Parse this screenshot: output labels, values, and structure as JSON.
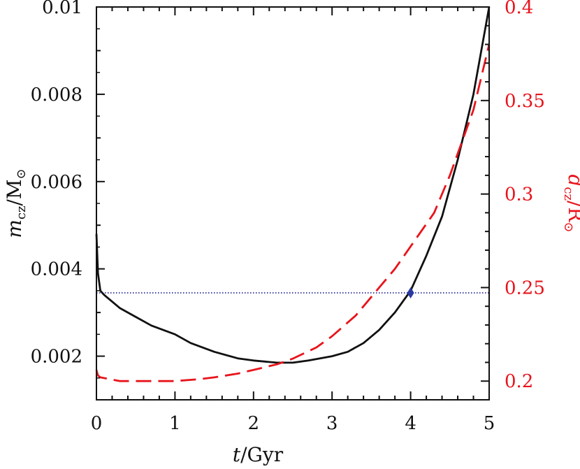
{
  "chart_data": {
    "type": "line",
    "xlabel": "t/Gyr",
    "ylabel_left": "m_cz/M_⊙",
    "ylabel_right": "d_cz/R_⊙",
    "xlim": [
      0,
      5
    ],
    "ylim_left": [
      0.001,
      0.01
    ],
    "ylim_right": [
      0.19,
      0.4
    ],
    "x_ticks": [
      "0",
      "1",
      "2",
      "3",
      "4",
      "5"
    ],
    "y_left_ticks": [
      "0.002",
      "0.004",
      "0.006",
      "0.008",
      "0.01"
    ],
    "y_right_ticks": [
      "0.2",
      "0.25",
      "0.3",
      "0.35",
      "0.4"
    ],
    "grid": false,
    "series": [
      {
        "axis": "left",
        "style": "solid",
        "color": "#111111",
        "x": [
          0,
          0.02,
          0.05,
          0.1,
          0.3,
          0.5,
          0.7,
          1.0,
          1.2,
          1.5,
          1.8,
          2.0,
          2.3,
          2.5,
          2.7,
          3.0,
          3.2,
          3.4,
          3.6,
          3.8,
          4.0,
          4.2,
          4.4,
          4.6,
          4.8,
          5.0
        ],
        "y": [
          0.0048,
          0.0039,
          0.0035,
          0.0034,
          0.0031,
          0.0029,
          0.0027,
          0.0025,
          0.0023,
          0.0021,
          0.00195,
          0.0019,
          0.00185,
          0.00185,
          0.0019,
          0.002,
          0.0021,
          0.0023,
          0.0026,
          0.003,
          0.0035,
          0.0043,
          0.0052,
          0.0065,
          0.008,
          0.01
        ]
      },
      {
        "axis": "right",
        "style": "dashed",
        "color": "#e8141c",
        "x": [
          0,
          0.02,
          0.05,
          0.3,
          0.5,
          0.7,
          1.0,
          1.3,
          1.5,
          1.8,
          2.0,
          2.3,
          2.5,
          2.8,
          3.0,
          3.3,
          3.5,
          3.8,
          4.0,
          4.3,
          4.5,
          4.8,
          5.0
        ],
        "y": [
          0.206,
          0.203,
          0.202,
          0.2,
          0.2,
          0.2,
          0.2,
          0.201,
          0.202,
          0.204,
          0.206,
          0.209,
          0.212,
          0.218,
          0.224,
          0.235,
          0.245,
          0.26,
          0.272,
          0.29,
          0.31,
          0.345,
          0.38
        ]
      }
    ],
    "reference_line": {
      "axis": "left",
      "y": 0.00345,
      "style": "dotted",
      "color": "#2a2a9a"
    },
    "marker": {
      "axis": "left",
      "x": 4.0,
      "y": 0.00345,
      "shape": "diamond",
      "color": "#2a3aa0"
    }
  }
}
